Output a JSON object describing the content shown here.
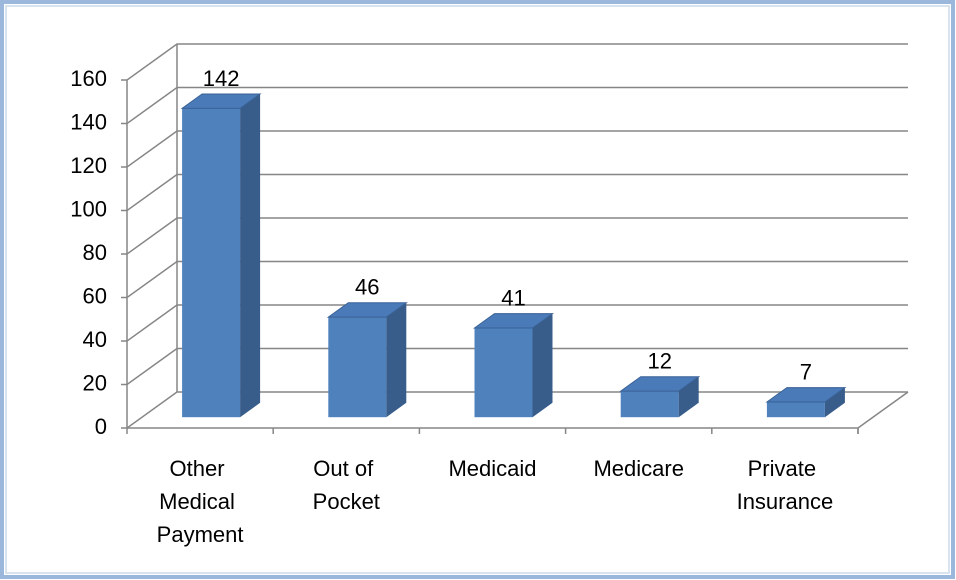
{
  "chart_data": {
    "type": "bar3d",
    "categories": [
      "Other Medical Payment",
      "Out of Pocket",
      "Medicaid",
      "Medicare",
      "Private Insurance"
    ],
    "values": [
      142,
      46,
      41,
      12,
      7
    ],
    "color": "#4f81bd",
    "ylim": [
      0,
      160
    ],
    "yticks": [
      0,
      20,
      40,
      60,
      80,
      100,
      120,
      140,
      160
    ],
    "grid": true
  }
}
